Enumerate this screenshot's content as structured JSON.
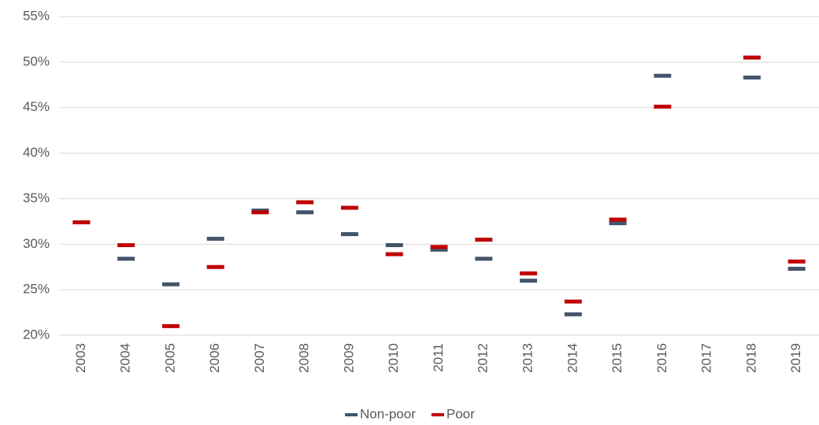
{
  "chart_data": {
    "type": "line",
    "marker": "dash",
    "lines": false,
    "categories": [
      "2003",
      "2004",
      "2005",
      "2006",
      "2007",
      "2008",
      "2009",
      "2010",
      "2011",
      "2012",
      "2013",
      "2014",
      "2015",
      "2016",
      "2017",
      "2018",
      "2019"
    ],
    "series": [
      {
        "name": "Non-poor",
        "color": "#44546a",
        "values": [
          32.4,
          28.4,
          25.6,
          30.6,
          33.7,
          33.5,
          31.1,
          29.9,
          29.4,
          28.4,
          26.0,
          22.3,
          32.3,
          48.5,
          null,
          48.3,
          27.3
        ]
      },
      {
        "name": "Poor",
        "color": "#c00000",
        "values": [
          32.4,
          29.9,
          21.0,
          27.5,
          33.5,
          34.6,
          34.0,
          28.9,
          29.7,
          30.5,
          26.8,
          23.7,
          32.7,
          45.1,
          null,
          50.5,
          28.1
        ]
      }
    ],
    "ylim": [
      20,
      55
    ],
    "yticks": [
      {
        "value": 20,
        "label": "20%"
      },
      {
        "value": 25,
        "label": "25%"
      },
      {
        "value": 30,
        "label": "30%"
      },
      {
        "value": 35,
        "label": "35%"
      },
      {
        "value": 40,
        "label": "40%"
      },
      {
        "value": 45,
        "label": "45%"
      },
      {
        "value": 50,
        "label": "50%"
      },
      {
        "value": 55,
        "label": "55%"
      }
    ],
    "grid": true,
    "legend": "bottom"
  }
}
